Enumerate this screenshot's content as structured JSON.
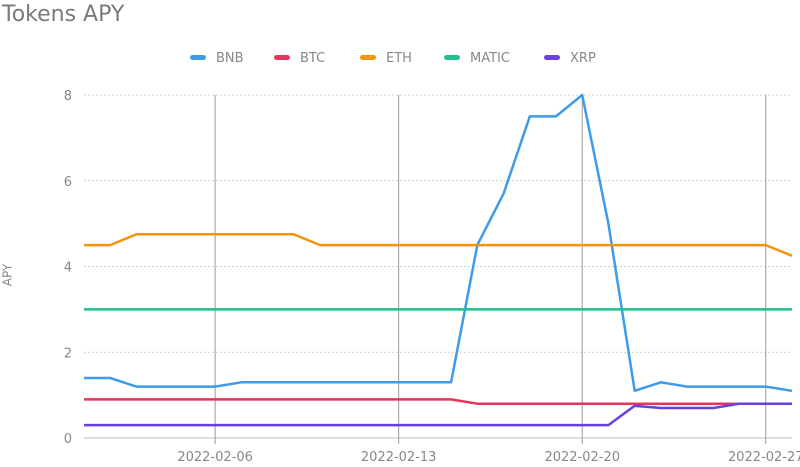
{
  "chart_data": {
    "type": "line",
    "title": "Tokens APY",
    "ylabel": "APY",
    "xlabel": "",
    "ylim": [
      0,
      8
    ],
    "yticks": [
      0,
      2,
      4,
      6,
      8
    ],
    "x_start": "2022-02-01",
    "x_end": "2022-02-28",
    "xticks": [
      "2022-02-06",
      "2022-02-13",
      "2022-02-20",
      "2022-02-27"
    ],
    "x": [
      "2022-02-01",
      "2022-02-02",
      "2022-02-03",
      "2022-02-04",
      "2022-02-05",
      "2022-02-06",
      "2022-02-07",
      "2022-02-08",
      "2022-02-09",
      "2022-02-10",
      "2022-02-11",
      "2022-02-12",
      "2022-02-13",
      "2022-02-14",
      "2022-02-15",
      "2022-02-16",
      "2022-02-17",
      "2022-02-18",
      "2022-02-19",
      "2022-02-20",
      "2022-02-21",
      "2022-02-22",
      "2022-02-23",
      "2022-02-24",
      "2022-02-25",
      "2022-02-26",
      "2022-02-27",
      "2022-02-28"
    ],
    "legend_position": "top",
    "grid": true,
    "series": [
      {
        "name": "BNB",
        "color": "#3d9be9",
        "values": [
          1.4,
          1.4,
          1.2,
          1.2,
          1.2,
          1.2,
          1.3,
          1.3,
          1.3,
          1.3,
          1.3,
          1.3,
          1.3,
          1.3,
          1.3,
          4.5,
          5.7,
          7.5,
          7.5,
          8.0,
          5.0,
          1.1,
          1.3,
          1.2,
          1.2,
          1.2,
          1.2,
          1.1
        ]
      },
      {
        "name": "BTC",
        "color": "#e8345a",
        "values": [
          0.9,
          0.9,
          0.9,
          0.9,
          0.9,
          0.9,
          0.9,
          0.9,
          0.9,
          0.9,
          0.9,
          0.9,
          0.9,
          0.9,
          0.9,
          0.8,
          0.8,
          0.8,
          0.8,
          0.8,
          0.8,
          0.8,
          0.8,
          0.8,
          0.8,
          0.8,
          0.8,
          0.8
        ]
      },
      {
        "name": "ETH",
        "color": "#f5930d",
        "values": [
          4.5,
          4.5,
          4.75,
          4.75,
          4.75,
          4.75,
          4.75,
          4.75,
          4.75,
          4.5,
          4.5,
          4.5,
          4.5,
          4.5,
          4.5,
          4.5,
          4.5,
          4.5,
          4.5,
          4.5,
          4.5,
          4.5,
          4.5,
          4.5,
          4.5,
          4.5,
          4.5,
          4.25
        ]
      },
      {
        "name": "MATIC",
        "color": "#1fbf8f",
        "values": [
          3,
          3,
          3,
          3,
          3,
          3,
          3,
          3,
          3,
          3,
          3,
          3,
          3,
          3,
          3,
          3,
          3,
          3,
          3,
          3,
          3,
          3,
          3,
          3,
          3,
          3,
          3,
          3
        ]
      },
      {
        "name": "XRP",
        "color": "#6a3fe0",
        "values": [
          0.3,
          0.3,
          0.3,
          0.3,
          0.3,
          0.3,
          0.3,
          0.3,
          0.3,
          0.3,
          0.3,
          0.3,
          0.3,
          0.3,
          0.3,
          0.3,
          0.3,
          0.3,
          0.3,
          0.3,
          0.3,
          0.75,
          0.7,
          0.7,
          0.7,
          0.8,
          0.8,
          0.8
        ]
      }
    ]
  }
}
